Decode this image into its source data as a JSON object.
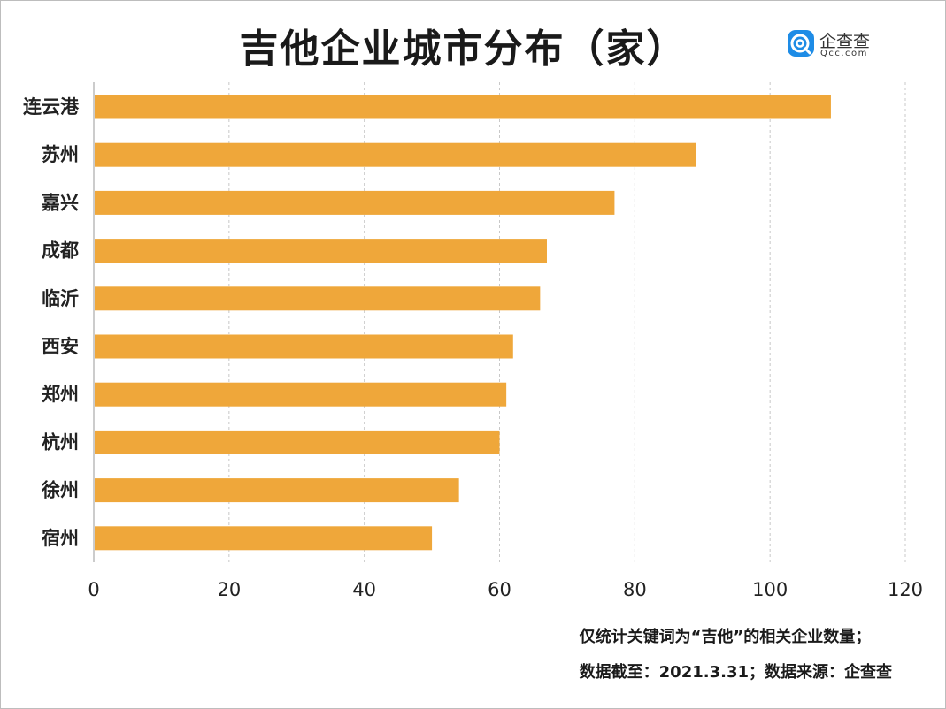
{
  "colors": {
    "bar": "#EFA73A",
    "grid": "#c8c8c8",
    "axis": "#999999"
  },
  "logo": {
    "name": "企查查",
    "sub": "Qcc.com",
    "icon": "qcc-logo-icon"
  },
  "footnote": {
    "line1": "仅统计关键词为“吉他”的相关企业数量；",
    "line2": "数据截至：2021.3.31；数据来源：企查查"
  },
  "chart_data": {
    "type": "bar",
    "orientation": "horizontal",
    "title": "吉他企业城市分布（家）",
    "categories": [
      "连云港",
      "苏州",
      "嘉兴",
      "成都",
      "临沂",
      "西安",
      "郑州",
      "杭州",
      "徐州",
      "宿州"
    ],
    "values": [
      109,
      89,
      77,
      67,
      66,
      62,
      61,
      60,
      54,
      50
    ],
    "xlim": [
      0,
      120
    ],
    "xticks": [
      "0",
      "20",
      "40",
      "60",
      "80",
      "100",
      "120"
    ],
    "grid": "vertical dashed",
    "legend": "none"
  }
}
